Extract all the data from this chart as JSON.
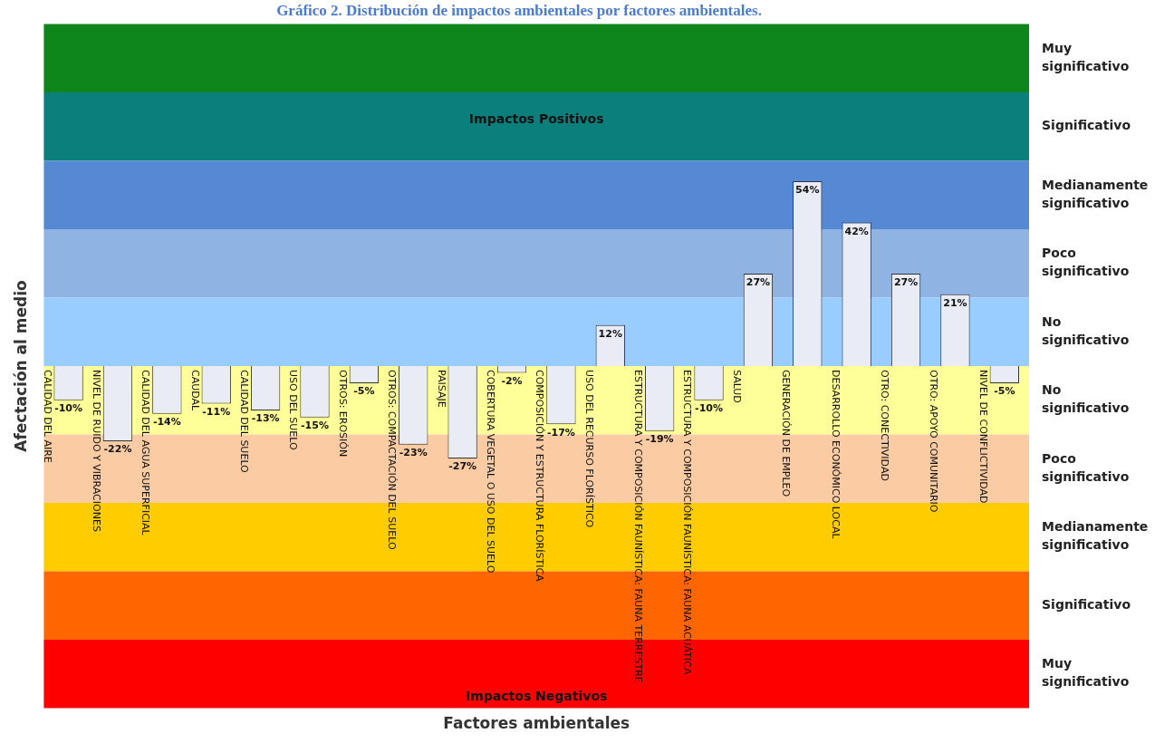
{
  "chart_data": {
    "type": "bar",
    "title": "Gráfico 2. Distribución de impactos ambientales por factores ambientales.",
    "xlabel": "Factores ambientales",
    "ylabel": "Afectación al medio",
    "categories": [
      "CALIDAD DEL AIRE",
      "NIVEL DE RUIDO Y VIBRACIONES",
      "CALIDAD DEL AGUA SUPERFICIAL",
      "CAUDAL",
      "CALIDAD DEL SUELO",
      "USO DEL SUELO",
      "OTROS: EROSIÓN",
      "OTROS: COMPACTACIÓN DEL SUELO",
      "PAISAJE",
      "COBERTURA VEGETAL O USO DEL SUELO",
      "COMPOSICIÓN Y ESTRUCTURA FLORÍSTICA",
      "USO DEL RECURSO FLORÍSTICO",
      "ESTRUCTURA Y COMPOSICIÓN FAUNÍSTICA: FAUNA TERRESTRE",
      "ESTRUCTURA Y COMPOSICIÓN FAUNÍSTICA: FAUNA ACUÁTICA",
      "SALUD",
      "GENERACIÓN DE EMPLEO",
      "DESARROLLO ECONÓMICO LOCAL",
      "OTRO: CONECTIVIDAD",
      "OTRO: APOYO COMUNITARIO",
      "NIVEL DE CONFLICTIVIDAD"
    ],
    "values": [
      -10,
      -22,
      -14,
      -11,
      -13,
      -15,
      -5,
      -23,
      -27,
      -2,
      -17,
      12,
      -19,
      -10,
      27,
      54,
      42,
      27,
      21,
      -5
    ],
    "value_labels": [
      "-10%",
      "-22%",
      "-14%",
      "-11%",
      "-13%",
      "-15%",
      "-5%",
      "-23%",
      "-27%",
      "-2%",
      "-17%",
      "12%",
      "-19%",
      "-10%",
      "27%",
      "54%",
      "42%",
      "27%",
      "21%",
      "-5%"
    ],
    "color": "#e9ecf5",
    "ylim": [
      -100,
      100
    ],
    "tick_labels": "x",
    "grid": false,
    "legend": false,
    "bands": [
      {
        "axis": "y",
        "from": 80,
        "to": 100,
        "label": "Muy significativo",
        "color": "#0f861c"
      },
      {
        "axis": "y",
        "from": 60,
        "to": 80,
        "label": "Significativo",
        "color": "#0a7f7c"
      },
      {
        "axis": "y",
        "from": 40,
        "to": 60,
        "label": "Medianamente significativo",
        "color": "#5589d3"
      },
      {
        "axis": "y",
        "from": 20,
        "to": 40,
        "label": "Poco significativo",
        "color": "#8fb3e3"
      },
      {
        "axis": "y",
        "from": 0,
        "to": 20,
        "label": "No significativo",
        "color": "#99ccff"
      },
      {
        "axis": "y",
        "from": -20,
        "to": 0,
        "label": "No significativo",
        "color": "#ffff99"
      },
      {
        "axis": "y",
        "from": -40,
        "to": -20,
        "label": "Poco significativo",
        "color": "#fbcba3"
      },
      {
        "axis": "y",
        "from": -60,
        "to": -40,
        "label": "Medianamente significativo",
        "color": "#ffcc00"
      },
      {
        "axis": "y",
        "from": -80,
        "to": -60,
        "label": "Significativo",
        "color": "#ff6600"
      },
      {
        "axis": "y",
        "from": -100,
        "to": -80,
        "label": "Muy significativo",
        "color": "#ff0000"
      }
    ],
    "annotations": [
      "Impactos Positivos",
      "Impactos Negativos"
    ]
  }
}
